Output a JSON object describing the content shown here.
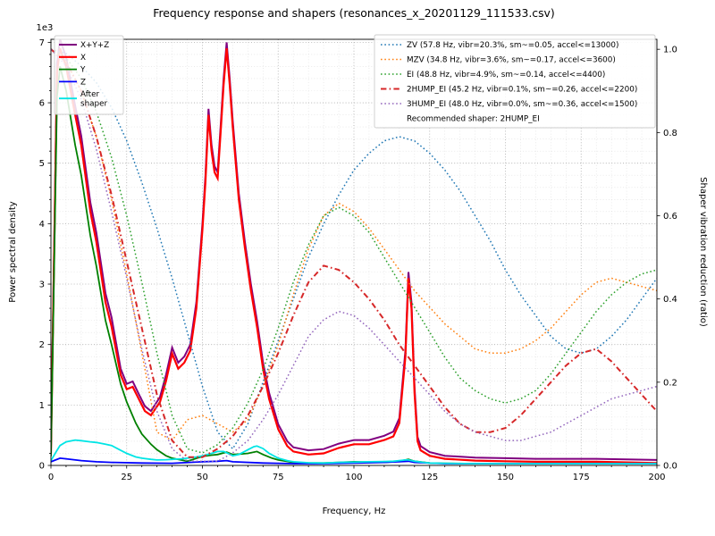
{
  "chart_data": {
    "type": "line",
    "title": "Frequency response and shapers (resonances_x_20201129_111533.csv)",
    "grid": "both",
    "x_axis": {
      "label": "Frequency, Hz",
      "min": 0,
      "max": 200,
      "major_step": 25,
      "minor_step": 5,
      "major_tick_values": [
        0,
        25,
        50,
        75,
        100,
        125,
        150,
        175,
        200
      ],
      "major_tick_labels": [
        "0",
        "25",
        "50",
        "75",
        "100",
        "125",
        "150",
        "175",
        "200"
      ]
    },
    "y_axis_left": {
      "label": "Power spectral density",
      "offset_text": "1e3",
      "min": 0,
      "max": 7050,
      "major_step": 1000,
      "minor_step": 200,
      "major_tick_values": [
        0,
        1000,
        2000,
        3000,
        4000,
        5000,
        6000,
        7000
      ],
      "major_tick_labels": [
        "0",
        "1",
        "2",
        "3",
        "4",
        "5",
        "6",
        "7"
      ]
    },
    "y_axis_right": {
      "label": "Shaper vibration reduction (ratio)",
      "min": 0,
      "max": 1.024,
      "major_tick_values": [
        0,
        0.2,
        0.4,
        0.6,
        0.8,
        1.0
      ],
      "major_tick_labels": [
        "0.0",
        "0.2",
        "0.4",
        "0.6",
        "0.8",
        "1.0"
      ]
    },
    "legend_psd_position": "upper-left",
    "legend_shaper_position": "upper-right",
    "annotation": "Recommended shaper: 2HUMP_EI",
    "recommended_shaper": "2HUMP_EI",
    "psd_series": [
      {
        "name": "X+Y+Z",
        "color": "#800080",
        "style": "solid",
        "width": 2,
        "x": [
          0,
          2,
          3,
          5,
          8,
          10,
          13,
          15,
          18,
          20,
          23,
          25,
          27,
          29,
          31,
          33,
          36,
          38,
          40,
          42,
          44,
          46,
          48,
          50,
          51,
          52,
          53,
          54,
          55,
          56,
          57,
          58,
          59,
          60,
          62,
          64,
          66,
          68,
          70,
          72,
          75,
          78,
          80,
          85,
          90,
          95,
          100,
          105,
          110,
          113,
          115,
          117,
          118,
          119,
          120,
          121,
          122,
          125,
          130,
          140,
          150,
          160,
          170,
          180,
          190,
          200
        ],
        "y": [
          260,
          6650,
          7050,
          6750,
          5950,
          5450,
          4350,
          3850,
          2850,
          2450,
          1600,
          1350,
          1390,
          1180,
          980,
          900,
          1130,
          1500,
          1950,
          1700,
          1800,
          2000,
          2700,
          4000,
          4800,
          5900,
          5300,
          4950,
          4850,
          5600,
          6400,
          7000,
          6400,
          5700,
          4500,
          3700,
          3000,
          2400,
          1700,
          1200,
          680,
          400,
          300,
          250,
          270,
          360,
          420,
          420,
          490,
          560,
          780,
          1900,
          3200,
          2700,
          1300,
          470,
          320,
          220,
          160,
          130,
          120,
          110,
          110,
          110,
          100,
          90
        ]
      },
      {
        "name": "X",
        "color": "#ff0000",
        "style": "solid",
        "width": 2.2,
        "x": [
          0,
          2,
          3,
          5,
          8,
          10,
          13,
          15,
          18,
          20,
          23,
          25,
          27,
          29,
          31,
          33,
          36,
          38,
          40,
          42,
          44,
          46,
          48,
          50,
          51,
          52,
          53,
          54,
          55,
          56,
          57,
          58,
          59,
          60,
          62,
          64,
          66,
          68,
          70,
          72,
          75,
          78,
          80,
          85,
          90,
          95,
          100,
          105,
          110,
          113,
          115,
          117,
          118,
          119,
          120,
          121,
          122,
          125,
          130,
          140,
          150,
          160,
          170,
          180,
          190,
          200
        ],
        "y": [
          200,
          6500,
          6900,
          6600,
          5800,
          5300,
          4200,
          3700,
          2700,
          2300,
          1500,
          1260,
          1300,
          1100,
          900,
          830,
          1050,
          1400,
          1850,
          1600,
          1700,
          1900,
          2600,
          3900,
          4700,
          5800,
          5200,
          4850,
          4750,
          5500,
          6300,
          6900,
          6300,
          5600,
          4400,
          3600,
          2900,
          2300,
          1600,
          1100,
          600,
          320,
          230,
          180,
          200,
          290,
          350,
          350,
          420,
          480,
          700,
          1800,
          3100,
          2600,
          1200,
          400,
          250,
          160,
          110,
          80,
          70,
          60,
          60,
          60,
          50,
          40
        ]
      },
      {
        "name": "Y",
        "color": "#008000",
        "style": "solid",
        "width": 1.8,
        "x": [
          0,
          2,
          3,
          5,
          8,
          10,
          13,
          15,
          18,
          20,
          23,
          25,
          28,
          30,
          33,
          35,
          38,
          40,
          45,
          50,
          53,
          55,
          58,
          60,
          63,
          65,
          68,
          70,
          73,
          75,
          80,
          85,
          90,
          95,
          100,
          105,
          110,
          115,
          118,
          120,
          125,
          130,
          140,
          150,
          160,
          170,
          180,
          190,
          200
        ],
        "y": [
          150,
          6100,
          6600,
          6200,
          5300,
          4800,
          3800,
          3300,
          2400,
          2000,
          1350,
          1050,
          700,
          520,
          350,
          260,
          160,
          120,
          70,
          150,
          170,
          180,
          220,
          180,
          190,
          200,
          230,
          180,
          120,
          90,
          50,
          40,
          40,
          50,
          60,
          55,
          50,
          70,
          100,
          70,
          40,
          35,
          30,
          30,
          30,
          30,
          30,
          30,
          30
        ]
      },
      {
        "name": "Z",
        "color": "#0000ff",
        "style": "solid",
        "width": 1.8,
        "x": [
          0,
          3,
          5,
          10,
          15,
          20,
          30,
          40,
          50,
          55,
          58,
          60,
          70,
          80,
          90,
          100,
          110,
          115,
          118,
          120,
          130,
          150,
          175,
          200
        ],
        "y": [
          60,
          120,
          110,
          80,
          60,
          50,
          40,
          35,
          60,
          70,
          80,
          60,
          40,
          30,
          30,
          40,
          50,
          60,
          70,
          50,
          30,
          30,
          30,
          30
        ]
      },
      {
        "name": "After\nshaper",
        "color": "#00e5e5",
        "style": "solid",
        "width": 1.8,
        "x": [
          0,
          2,
          3,
          5,
          8,
          10,
          13,
          15,
          18,
          20,
          23,
          25,
          28,
          30,
          33,
          35,
          38,
          40,
          43,
          45,
          48,
          50,
          53,
          55,
          57,
          58,
          60,
          62,
          65,
          67,
          68,
          70,
          72,
          75,
          78,
          80,
          85,
          90,
          95,
          100,
          105,
          110,
          113,
          115,
          117,
          118,
          120,
          123,
          125,
          130,
          140,
          150,
          160,
          170,
          180,
          190,
          200
        ],
        "y": [
          80,
          250,
          330,
          390,
          420,
          410,
          390,
          380,
          350,
          330,
          250,
          200,
          140,
          120,
          100,
          90,
          95,
          100,
          110,
          120,
          140,
          160,
          200,
          230,
          230,
          210,
          160,
          180,
          260,
          310,
          320,
          280,
          200,
          120,
          80,
          60,
          45,
          40,
          50,
          55,
          60,
          65,
          70,
          80,
          90,
          90,
          70,
          50,
          40,
          35,
          30,
          30,
          30,
          30,
          30,
          30,
          30
        ]
      }
    ],
    "shaper_series": [
      {
        "name": "ZV",
        "label": "ZV (57.8 Hz, vibr=20.3%, sm~=0.05, accel<=13000)",
        "color": "#1f77b4",
        "style": "dotted",
        "width": 1.5,
        "x": [
          0,
          5,
          10,
          15,
          20,
          25,
          30,
          35,
          40,
          45,
          50,
          55,
          60,
          65,
          70,
          75,
          80,
          85,
          90,
          95,
          100,
          105,
          110,
          115,
          120,
          125,
          130,
          135,
          140,
          145,
          150,
          155,
          160,
          165,
          170,
          175,
          180,
          185,
          190,
          195,
          200
        ],
        "y": [
          1.0,
          0.99,
          0.96,
          0.92,
          0.86,
          0.78,
          0.68,
          0.57,
          0.45,
          0.32,
          0.19,
          0.08,
          0.04,
          0.1,
          0.2,
          0.3,
          0.4,
          0.5,
          0.58,
          0.65,
          0.71,
          0.75,
          0.78,
          0.79,
          0.78,
          0.75,
          0.71,
          0.66,
          0.6,
          0.54,
          0.47,
          0.41,
          0.36,
          0.31,
          0.28,
          0.27,
          0.28,
          0.31,
          0.35,
          0.4,
          0.45
        ]
      },
      {
        "name": "MZV",
        "label": "MZV (34.8 Hz, vibr=3.6%, sm~=0.17, accel<=3600)",
        "color": "#ff7f0e",
        "style": "dotted",
        "width": 1.5,
        "x": [
          0,
          5,
          10,
          15,
          20,
          25,
          30,
          35,
          40,
          45,
          50,
          55,
          60,
          65,
          70,
          75,
          80,
          85,
          90,
          95,
          100,
          105,
          110,
          115,
          120,
          125,
          130,
          135,
          140,
          145,
          150,
          155,
          160,
          165,
          170,
          175,
          180,
          185,
          190,
          195,
          200
        ],
        "y": [
          1.0,
          0.97,
          0.9,
          0.79,
          0.64,
          0.46,
          0.27,
          0.08,
          0.06,
          0.11,
          0.12,
          0.1,
          0.08,
          0.11,
          0.19,
          0.29,
          0.41,
          0.52,
          0.6,
          0.63,
          0.61,
          0.57,
          0.52,
          0.47,
          0.42,
          0.38,
          0.34,
          0.31,
          0.28,
          0.27,
          0.27,
          0.28,
          0.3,
          0.33,
          0.37,
          0.41,
          0.44,
          0.45,
          0.44,
          0.43,
          0.42
        ]
      },
      {
        "name": "EI",
        "label": "EI (48.8 Hz, vibr=4.9%, sm~=0.14, accel<=4400)",
        "color": "#2ca02c",
        "style": "dotted",
        "width": 1.5,
        "x": [
          0,
          5,
          10,
          15,
          20,
          25,
          30,
          35,
          40,
          45,
          50,
          55,
          60,
          65,
          70,
          75,
          80,
          85,
          90,
          95,
          100,
          105,
          110,
          115,
          120,
          125,
          130,
          135,
          140,
          145,
          150,
          155,
          160,
          165,
          170,
          175,
          180,
          185,
          190,
          195,
          200
        ],
        "y": [
          1.0,
          0.98,
          0.93,
          0.85,
          0.74,
          0.6,
          0.44,
          0.27,
          0.12,
          0.04,
          0.03,
          0.05,
          0.09,
          0.15,
          0.23,
          0.33,
          0.44,
          0.53,
          0.6,
          0.62,
          0.6,
          0.56,
          0.5,
          0.44,
          0.38,
          0.32,
          0.26,
          0.21,
          0.18,
          0.16,
          0.15,
          0.16,
          0.18,
          0.22,
          0.27,
          0.32,
          0.37,
          0.41,
          0.44,
          0.46,
          0.47
        ]
      },
      {
        "name": "2HUMP_EI",
        "label": "2HUMP_EI (45.2 Hz, vibr=0.1%, sm~=0.26, accel<=2200)",
        "color": "#d62728",
        "style": "dashdot",
        "width": 2,
        "x": [
          0,
          5,
          10,
          15,
          20,
          25,
          30,
          35,
          40,
          45,
          50,
          55,
          60,
          65,
          70,
          75,
          80,
          85,
          90,
          95,
          100,
          105,
          110,
          115,
          120,
          125,
          130,
          135,
          140,
          145,
          150,
          155,
          160,
          165,
          170,
          175,
          180,
          185,
          190,
          195,
          200
        ],
        "y": [
          1.0,
          0.97,
          0.9,
          0.79,
          0.65,
          0.49,
          0.33,
          0.17,
          0.06,
          0.02,
          0.02,
          0.04,
          0.07,
          0.12,
          0.19,
          0.27,
          0.36,
          0.44,
          0.48,
          0.47,
          0.44,
          0.4,
          0.35,
          0.29,
          0.24,
          0.19,
          0.14,
          0.1,
          0.08,
          0.08,
          0.09,
          0.12,
          0.16,
          0.2,
          0.24,
          0.27,
          0.28,
          0.25,
          0.21,
          0.17,
          0.13
        ]
      },
      {
        "name": "3HUMP_EI",
        "label": "3HUMP_EI (48.0 Hz, vibr=0.0%, sm~=0.36, accel<=1500)",
        "color": "#9467bd",
        "style": "dotted",
        "width": 1.5,
        "x": [
          0,
          5,
          10,
          15,
          20,
          25,
          30,
          35,
          40,
          45,
          50,
          55,
          60,
          65,
          70,
          75,
          80,
          85,
          90,
          95,
          100,
          105,
          110,
          115,
          120,
          125,
          130,
          135,
          140,
          145,
          150,
          155,
          160,
          165,
          170,
          175,
          180,
          185,
          190,
          195,
          200
        ],
        "y": [
          1.0,
          0.96,
          0.88,
          0.76,
          0.61,
          0.45,
          0.28,
          0.13,
          0.04,
          0.01,
          0.01,
          0.01,
          0.03,
          0.06,
          0.11,
          0.17,
          0.24,
          0.31,
          0.35,
          0.37,
          0.36,
          0.33,
          0.29,
          0.25,
          0.21,
          0.17,
          0.13,
          0.1,
          0.08,
          0.07,
          0.06,
          0.06,
          0.07,
          0.08,
          0.1,
          0.12,
          0.14,
          0.16,
          0.17,
          0.18,
          0.19
        ]
      }
    ]
  }
}
